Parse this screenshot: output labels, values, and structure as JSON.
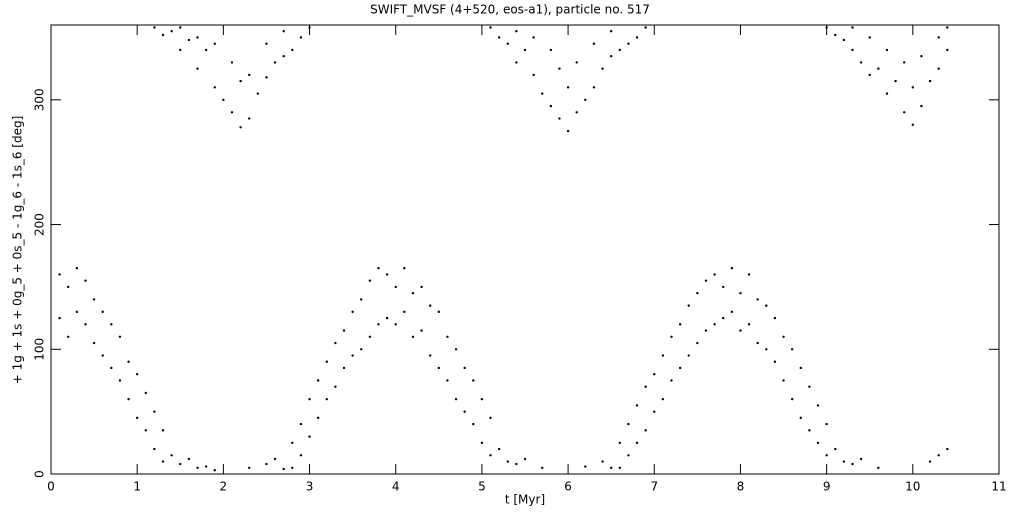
{
  "chart_data": {
    "type": "scatter",
    "title": "SWIFT_MVSF (4+520, eos-a1), particle no. 517",
    "x_label": "t [Myr]",
    "y_label": "+ 1g + 1s + 0g_5 + 0s_5 - 1g_6 - 1s_6 [deg]",
    "color": "#000000",
    "xlim": [
      0,
      11
    ],
    "xticks": [
      0,
      1,
      2,
      3,
      4,
      5,
      6,
      7,
      8,
      9,
      10,
      11
    ],
    "ylim": [
      0,
      360
    ],
    "yticks": [
      0,
      100,
      200,
      300
    ],
    "x": [
      0.1,
      0.1,
      0.2,
      0.2,
      0.3,
      0.3,
      0.4,
      0.4,
      0.5,
      0.5,
      0.6,
      0.6,
      0.7,
      0.7,
      0.8,
      0.8,
      0.9,
      0.9,
      1.0,
      1.0,
      1.1,
      1.1,
      1.2,
      1.2,
      1.3,
      1.3,
      1.4,
      1.5,
      1.6,
      1.7,
      1.8,
      1.9,
      2.3,
      2.5,
      2.6,
      2.7,
      2.8,
      2.8,
      2.9,
      2.9,
      3.0,
      3.0,
      3.1,
      3.1,
      3.2,
      3.2,
      3.3,
      3.3,
      3.4,
      3.4,
      3.5,
      3.5,
      3.6,
      3.6,
      3.7,
      3.7,
      3.8,
      3.8,
      3.9,
      3.9,
      4.0,
      4.0,
      4.1,
      4.1,
      4.2,
      4.2,
      4.3,
      4.3,
      4.4,
      4.4,
      4.5,
      4.5,
      4.6,
      4.6,
      4.7,
      4.7,
      4.8,
      4.8,
      4.9,
      4.9,
      5.0,
      5.0,
      5.1,
      5.1,
      5.2,
      5.3,
      5.4,
      5.5,
      5.7,
      6.2,
      6.4,
      6.5,
      6.6,
      6.6,
      6.7,
      6.7,
      6.8,
      6.8,
      6.9,
      6.9,
      7.0,
      7.0,
      7.1,
      7.1,
      7.2,
      7.2,
      7.3,
      7.3,
      7.4,
      7.4,
      7.5,
      7.5,
      7.6,
      7.6,
      7.7,
      7.7,
      7.8,
      7.8,
      7.9,
      7.9,
      8.0,
      8.0,
      8.1,
      8.1,
      8.2,
      8.2,
      8.3,
      8.3,
      8.4,
      8.4,
      8.5,
      8.5,
      8.6,
      8.6,
      8.7,
      8.7,
      8.8,
      8.8,
      8.9,
      8.9,
      9.0,
      9.0,
      9.1,
      9.2,
      9.3,
      9.4,
      9.6,
      10.2,
      10.3,
      10.4,
      1.2,
      1.3,
      1.4,
      1.5,
      1.5,
      1.6,
      1.7,
      1.7,
      1.8,
      1.9,
      1.9,
      2.0,
      2.1,
      2.1,
      2.2,
      2.2,
      2.3,
      2.3,
      2.4,
      2.5,
      2.5,
      2.6,
      2.7,
      2.7,
      2.8,
      2.9,
      3.0,
      5.1,
      5.2,
      5.3,
      5.4,
      5.4,
      5.5,
      5.6,
      5.6,
      5.7,
      5.8,
      5.8,
      5.9,
      5.9,
      6.0,
      6.0,
      6.1,
      6.1,
      6.2,
      6.3,
      6.3,
      6.4,
      6.5,
      6.5,
      6.6,
      6.7,
      6.8,
      6.9,
      9.0,
      9.1,
      9.2,
      9.3,
      9.3,
      9.4,
      9.5,
      9.5,
      9.6,
      9.7,
      9.7,
      9.8,
      9.9,
      9.9,
      10.0,
      10.0,
      10.1,
      10.1,
      10.2,
      10.3,
      10.3,
      10.4,
      10.4
    ],
    "y": [
      160,
      125,
      150,
      110,
      165,
      130,
      155,
      120,
      140,
      105,
      130,
      95,
      120,
      85,
      110,
      75,
      90,
      60,
      80,
      45,
      65,
      35,
      50,
      20,
      35,
      10,
      15,
      8,
      12,
      5,
      6,
      3,
      5,
      8,
      12,
      4,
      25,
      5,
      40,
      15,
      60,
      30,
      75,
      45,
      90,
      60,
      105,
      70,
      115,
      85,
      130,
      95,
      140,
      100,
      155,
      110,
      165,
      120,
      160,
      125,
      150,
      120,
      165,
      130,
      145,
      110,
      150,
      115,
      135,
      95,
      130,
      85,
      110,
      75,
      100,
      60,
      85,
      50,
      75,
      40,
      60,
      25,
      45,
      15,
      20,
      10,
      8,
      12,
      5,
      6,
      10,
      5,
      25,
      5,
      40,
      15,
      55,
      25,
      70,
      35,
      80,
      50,
      95,
      60,
      110,
      75,
      120,
      85,
      135,
      95,
      145,
      105,
      155,
      115,
      160,
      120,
      150,
      125,
      165,
      130,
      145,
      115,
      160,
      120,
      140,
      105,
      135,
      100,
      125,
      90,
      110,
      75,
      100,
      60,
      85,
      45,
      70,
      35,
      55,
      25,
      40,
      15,
      20,
      10,
      8,
      12,
      5,
      10,
      15,
      20,
      358,
      352,
      355,
      340,
      358,
      348,
      325,
      350,
      340,
      310,
      345,
      300,
      290,
      330,
      278,
      315,
      285,
      320,
      305,
      318,
      345,
      330,
      335,
      355,
      340,
      350,
      358,
      358,
      350,
      345,
      330,
      355,
      340,
      320,
      350,
      305,
      295,
      340,
      285,
      325,
      275,
      310,
      290,
      330,
      300,
      310,
      345,
      325,
      335,
      355,
      340,
      345,
      350,
      358,
      358,
      352,
      348,
      340,
      358,
      330,
      320,
      350,
      325,
      305,
      340,
      315,
      290,
      330,
      280,
      310,
      295,
      335,
      315,
      325,
      350,
      340,
      358
    ]
  }
}
